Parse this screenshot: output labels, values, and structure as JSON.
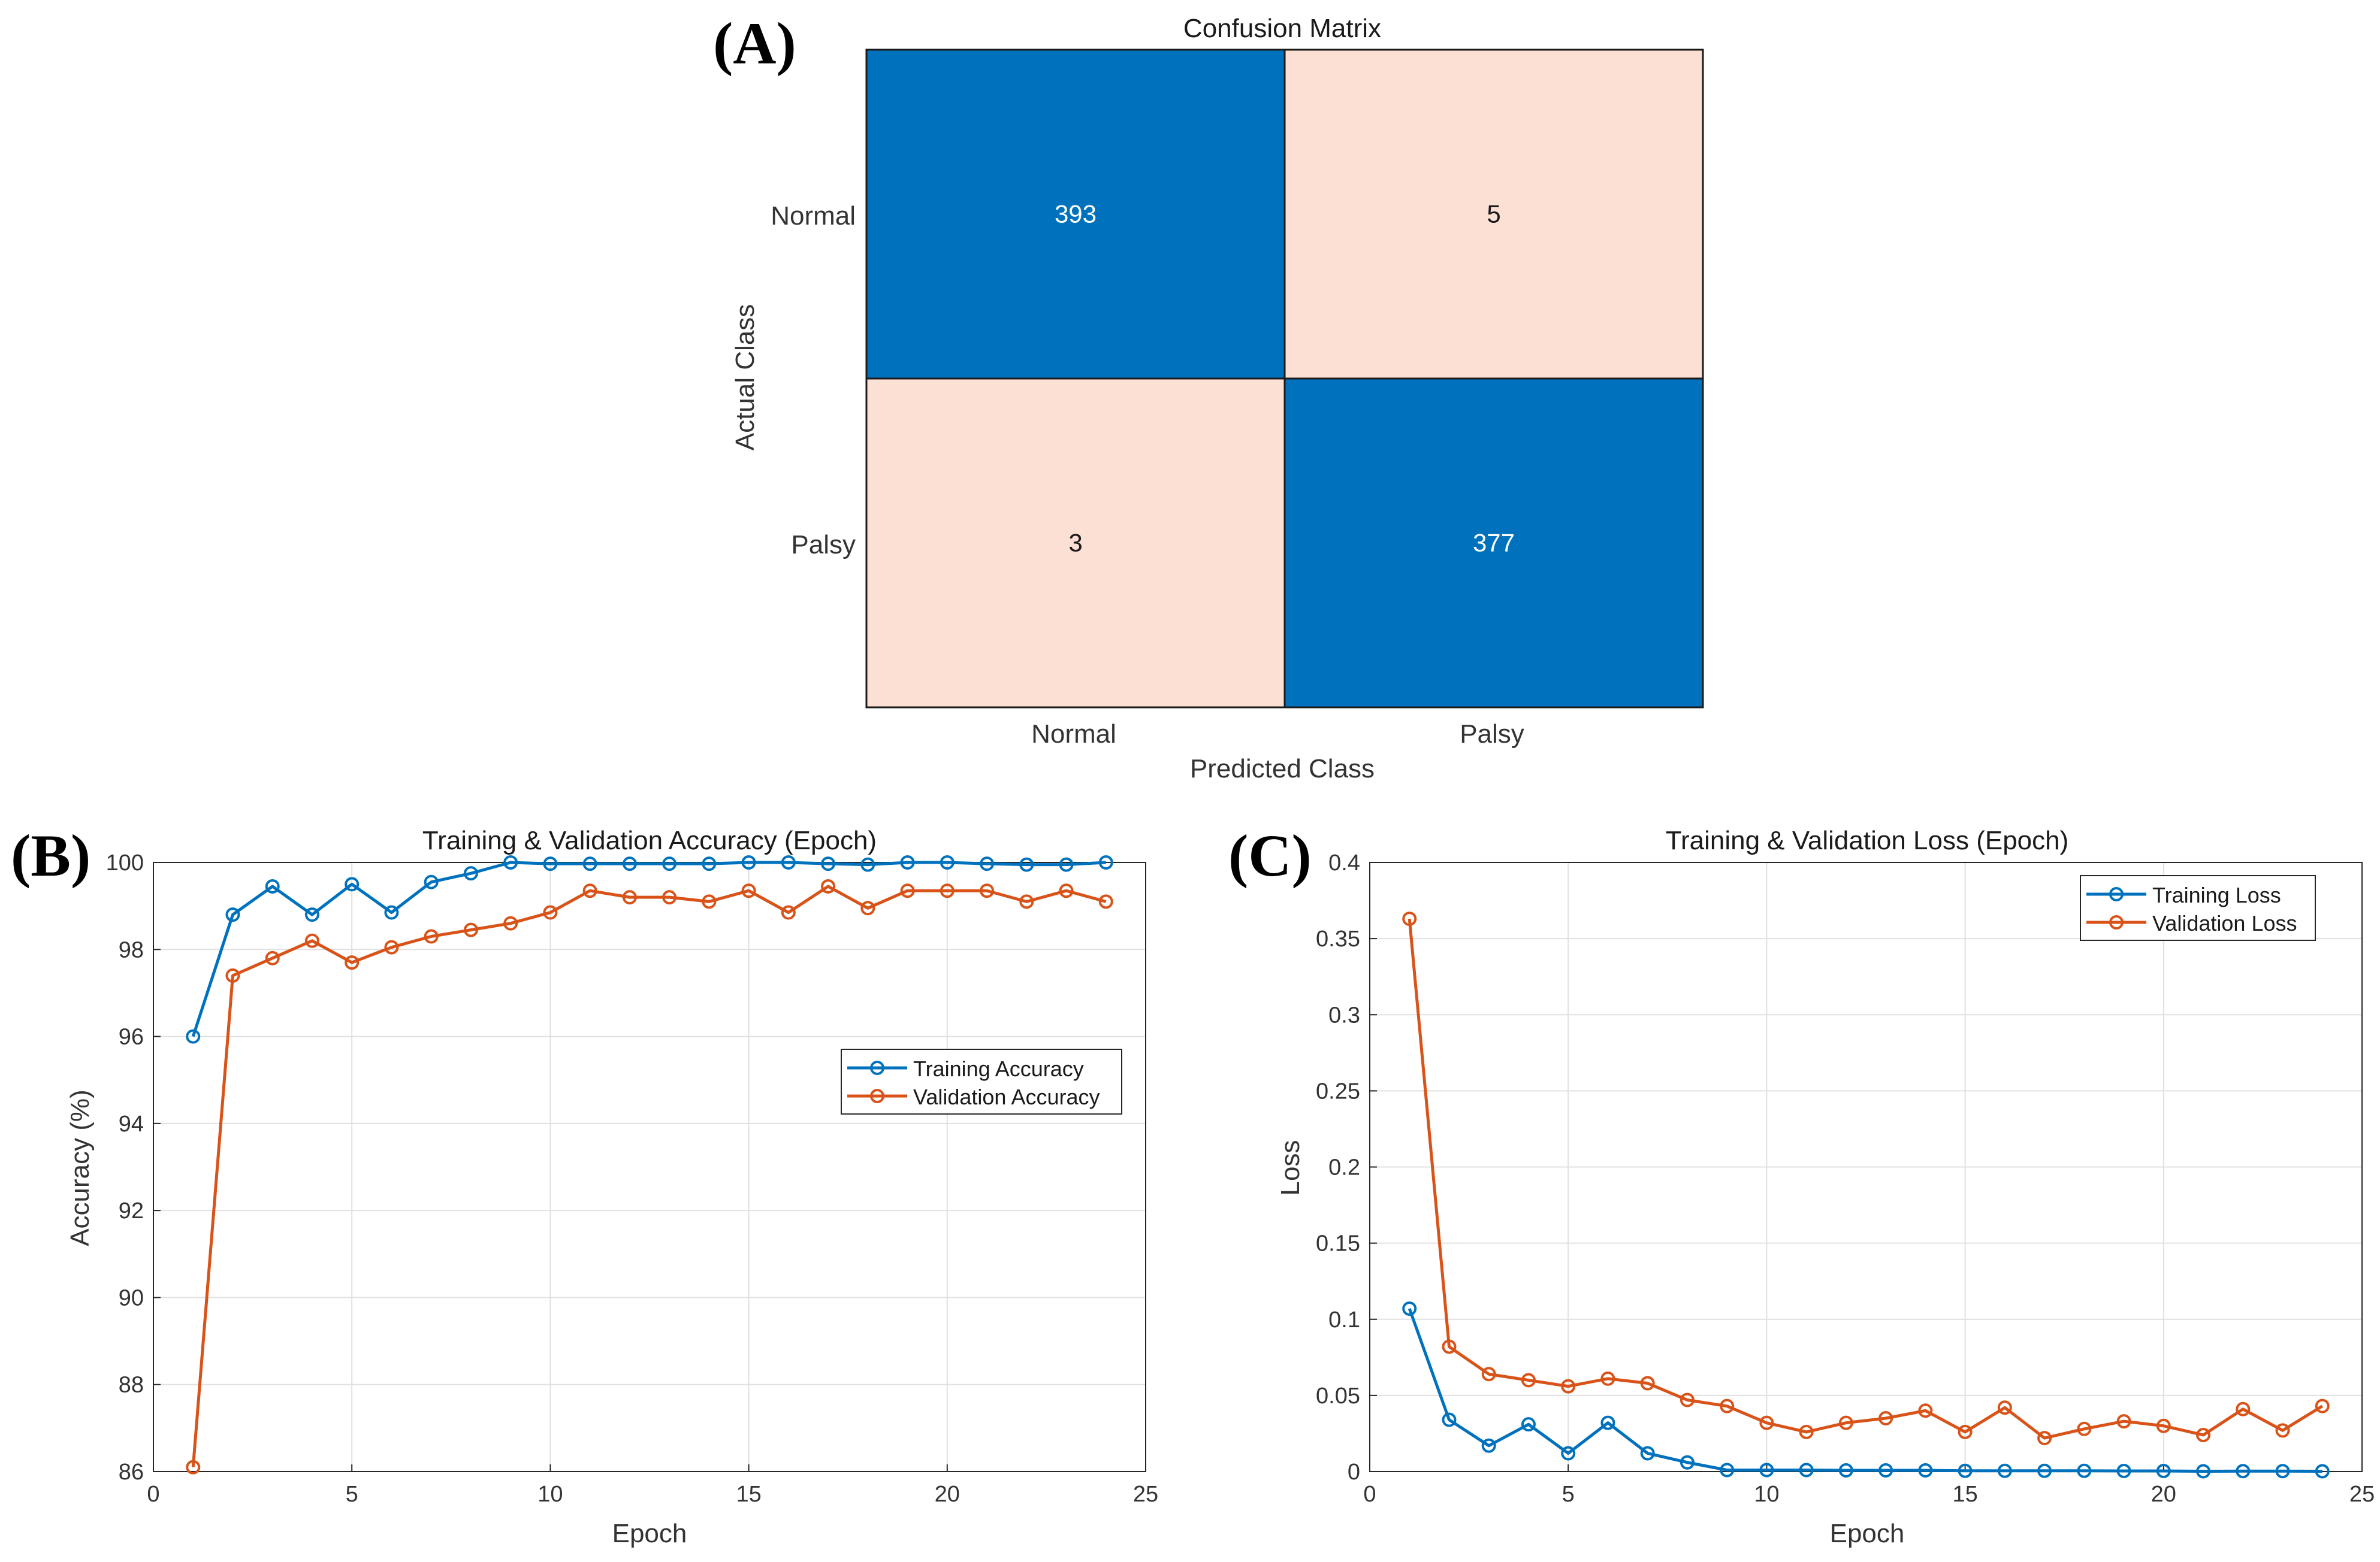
{
  "panel_labels": {
    "a": "(A)",
    "b": "(B)",
    "c": "(C)"
  },
  "colors": {
    "blue": "#0072bd",
    "orange": "#d95319",
    "cm_high": "#0072bd",
    "cm_low": "#fde0d4",
    "grid": "#e0e0e0"
  },
  "chart_data": [
    {
      "type": "heatmap",
      "title": "Confusion Matrix",
      "xlabel": "Predicted Class",
      "ylabel": "Actual Class",
      "x_categories": [
        "Normal",
        "Palsy"
      ],
      "y_categories": [
        "Normal",
        "Palsy"
      ],
      "values": [
        [
          393,
          5
        ],
        [
          3,
          377
        ]
      ]
    },
    {
      "type": "line",
      "title": "Training & Validation Accuracy (Epoch)",
      "xlabel": "Epoch",
      "ylabel": "Accuracy (%)",
      "xlim": [
        0,
        25
      ],
      "ylim": [
        86,
        100
      ],
      "xticks": [
        "0",
        "5",
        "10",
        "15",
        "20",
        "25"
      ],
      "yticks": [
        "86",
        "88",
        "90",
        "92",
        "94",
        "96",
        "98",
        "100"
      ],
      "legend": "center-right",
      "x": [
        1,
        2,
        3,
        4,
        5,
        6,
        7,
        8,
        9,
        10,
        11,
        12,
        13,
        14,
        15,
        16,
        17,
        18,
        19,
        20,
        21,
        22,
        23,
        24
      ],
      "series": [
        {
          "name": "Training Accuracy",
          "color": "#0072bd",
          "values": [
            96.0,
            98.8,
            99.45,
            98.8,
            99.5,
            98.85,
            99.55,
            99.75,
            100.0,
            99.97,
            99.97,
            99.97,
            99.97,
            99.97,
            100.0,
            100.0,
            99.97,
            99.95,
            100.0,
            100.0,
            99.97,
            99.95,
            99.95,
            100.0
          ]
        },
        {
          "name": "Validation Accuracy",
          "color": "#d95319",
          "values": [
            86.1,
            97.4,
            97.8,
            98.2,
            97.7,
            98.05,
            98.3,
            98.45,
            98.6,
            98.85,
            99.35,
            99.2,
            99.2,
            99.1,
            99.35,
            98.85,
            99.45,
            98.95,
            99.35,
            99.35,
            99.35,
            99.1,
            99.35,
            99.1
          ]
        }
      ]
    },
    {
      "type": "line",
      "title": "Training & Validation Loss (Epoch)",
      "xlabel": "Epoch",
      "ylabel": "Loss",
      "xlim": [
        0,
        25
      ],
      "ylim": [
        0,
        0.4
      ],
      "xticks": [
        "0",
        "5",
        "10",
        "15",
        "20",
        "25"
      ],
      "yticks": [
        "0",
        "0.05",
        "0.1",
        "0.15",
        "0.2",
        "0.25",
        "0.3",
        "0.35",
        "0.4"
      ],
      "legend": "top-right",
      "x": [
        1,
        2,
        3,
        4,
        5,
        6,
        7,
        8,
        9,
        10,
        11,
        12,
        13,
        14,
        15,
        16,
        17,
        18,
        19,
        20,
        21,
        22,
        23,
        24
      ],
      "series": [
        {
          "name": "Training Loss",
          "color": "#0072bd",
          "values": [
            0.107,
            0.034,
            0.017,
            0.031,
            0.012,
            0.032,
            0.012,
            0.006,
            0.001,
            0.001,
            0.001,
            0.0008,
            0.0008,
            0.0008,
            0.0005,
            0.0005,
            0.0005,
            0.0005,
            0.0004,
            0.0004,
            0.0002,
            0.0003,
            0.0003,
            0.0002
          ]
        },
        {
          "name": "Validation Loss",
          "color": "#d95319",
          "values": [
            0.363,
            0.082,
            0.064,
            0.06,
            0.056,
            0.061,
            0.058,
            0.047,
            0.043,
            0.032,
            0.026,
            0.032,
            0.035,
            0.04,
            0.026,
            0.042,
            0.022,
            0.028,
            0.033,
            0.03,
            0.024,
            0.041,
            0.027,
            0.043
          ]
        }
      ]
    }
  ]
}
